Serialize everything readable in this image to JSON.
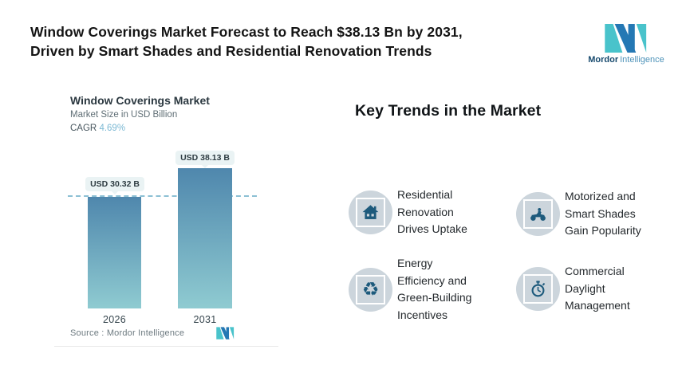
{
  "header": {
    "title_line1": "Window Coverings Market Forecast to Reach $38.13 Bn by 2031,",
    "title_line2": "Driven by Smart Shades and Residential Renovation Trends",
    "logo": {
      "brand_bold": "Mordor",
      "brand_light": "Intelligence"
    }
  },
  "chart_card": {
    "title": "Window Coverings Market",
    "subtitle": "Market Size in USD Billion",
    "cagr_label": "CAGR",
    "cagr_value": "4.69%",
    "source": "Source :  Mordor Intelligence"
  },
  "chart_data": {
    "type": "bar",
    "title": "Window Coverings Market",
    "subtitle": "Market Size in USD Billion",
    "cagr": "4.69%",
    "categories": [
      "2026",
      "2031"
    ],
    "values": [
      30.32,
      38.13
    ],
    "value_labels": [
      "USD 30.32 B",
      "USD 38.13 B"
    ],
    "unit": "USD Billion",
    "ylim": [
      0,
      40
    ],
    "grid": "off",
    "legend": "none",
    "reference_line": {
      "y": 30.32,
      "style": "dashed",
      "color": "#8cc0d4"
    },
    "bar_gradient_top": "#4f87ad",
    "bar_gradient_bottom": "#8fcbd1",
    "source": "Mordor Intelligence"
  },
  "trends": {
    "heading": "Key Trends in the Market",
    "items": [
      {
        "icon": "house-icon",
        "label": "Residential Renovation Drives Uptake"
      },
      {
        "icon": "motorcycle-icon",
        "label": "Motorized and Smart Shades Gain Popularity"
      },
      {
        "icon": "recycle-leaf-icon",
        "label": "Energy Efficiency and Green-Building Incentives"
      },
      {
        "icon": "stopwatch-icon",
        "label": "Commercial Daylight Management"
      }
    ]
  },
  "colors": {
    "brand_blue": "#2478b4",
    "brand_teal": "#49c3cb",
    "icon_glyph": "#1d5a7c",
    "icon_circle_bg": "#ccd5dc",
    "pill_bg": "#eaf3f4",
    "dashed_line": "#8cc0d4"
  },
  "recycle_glyph_char": "♻"
}
